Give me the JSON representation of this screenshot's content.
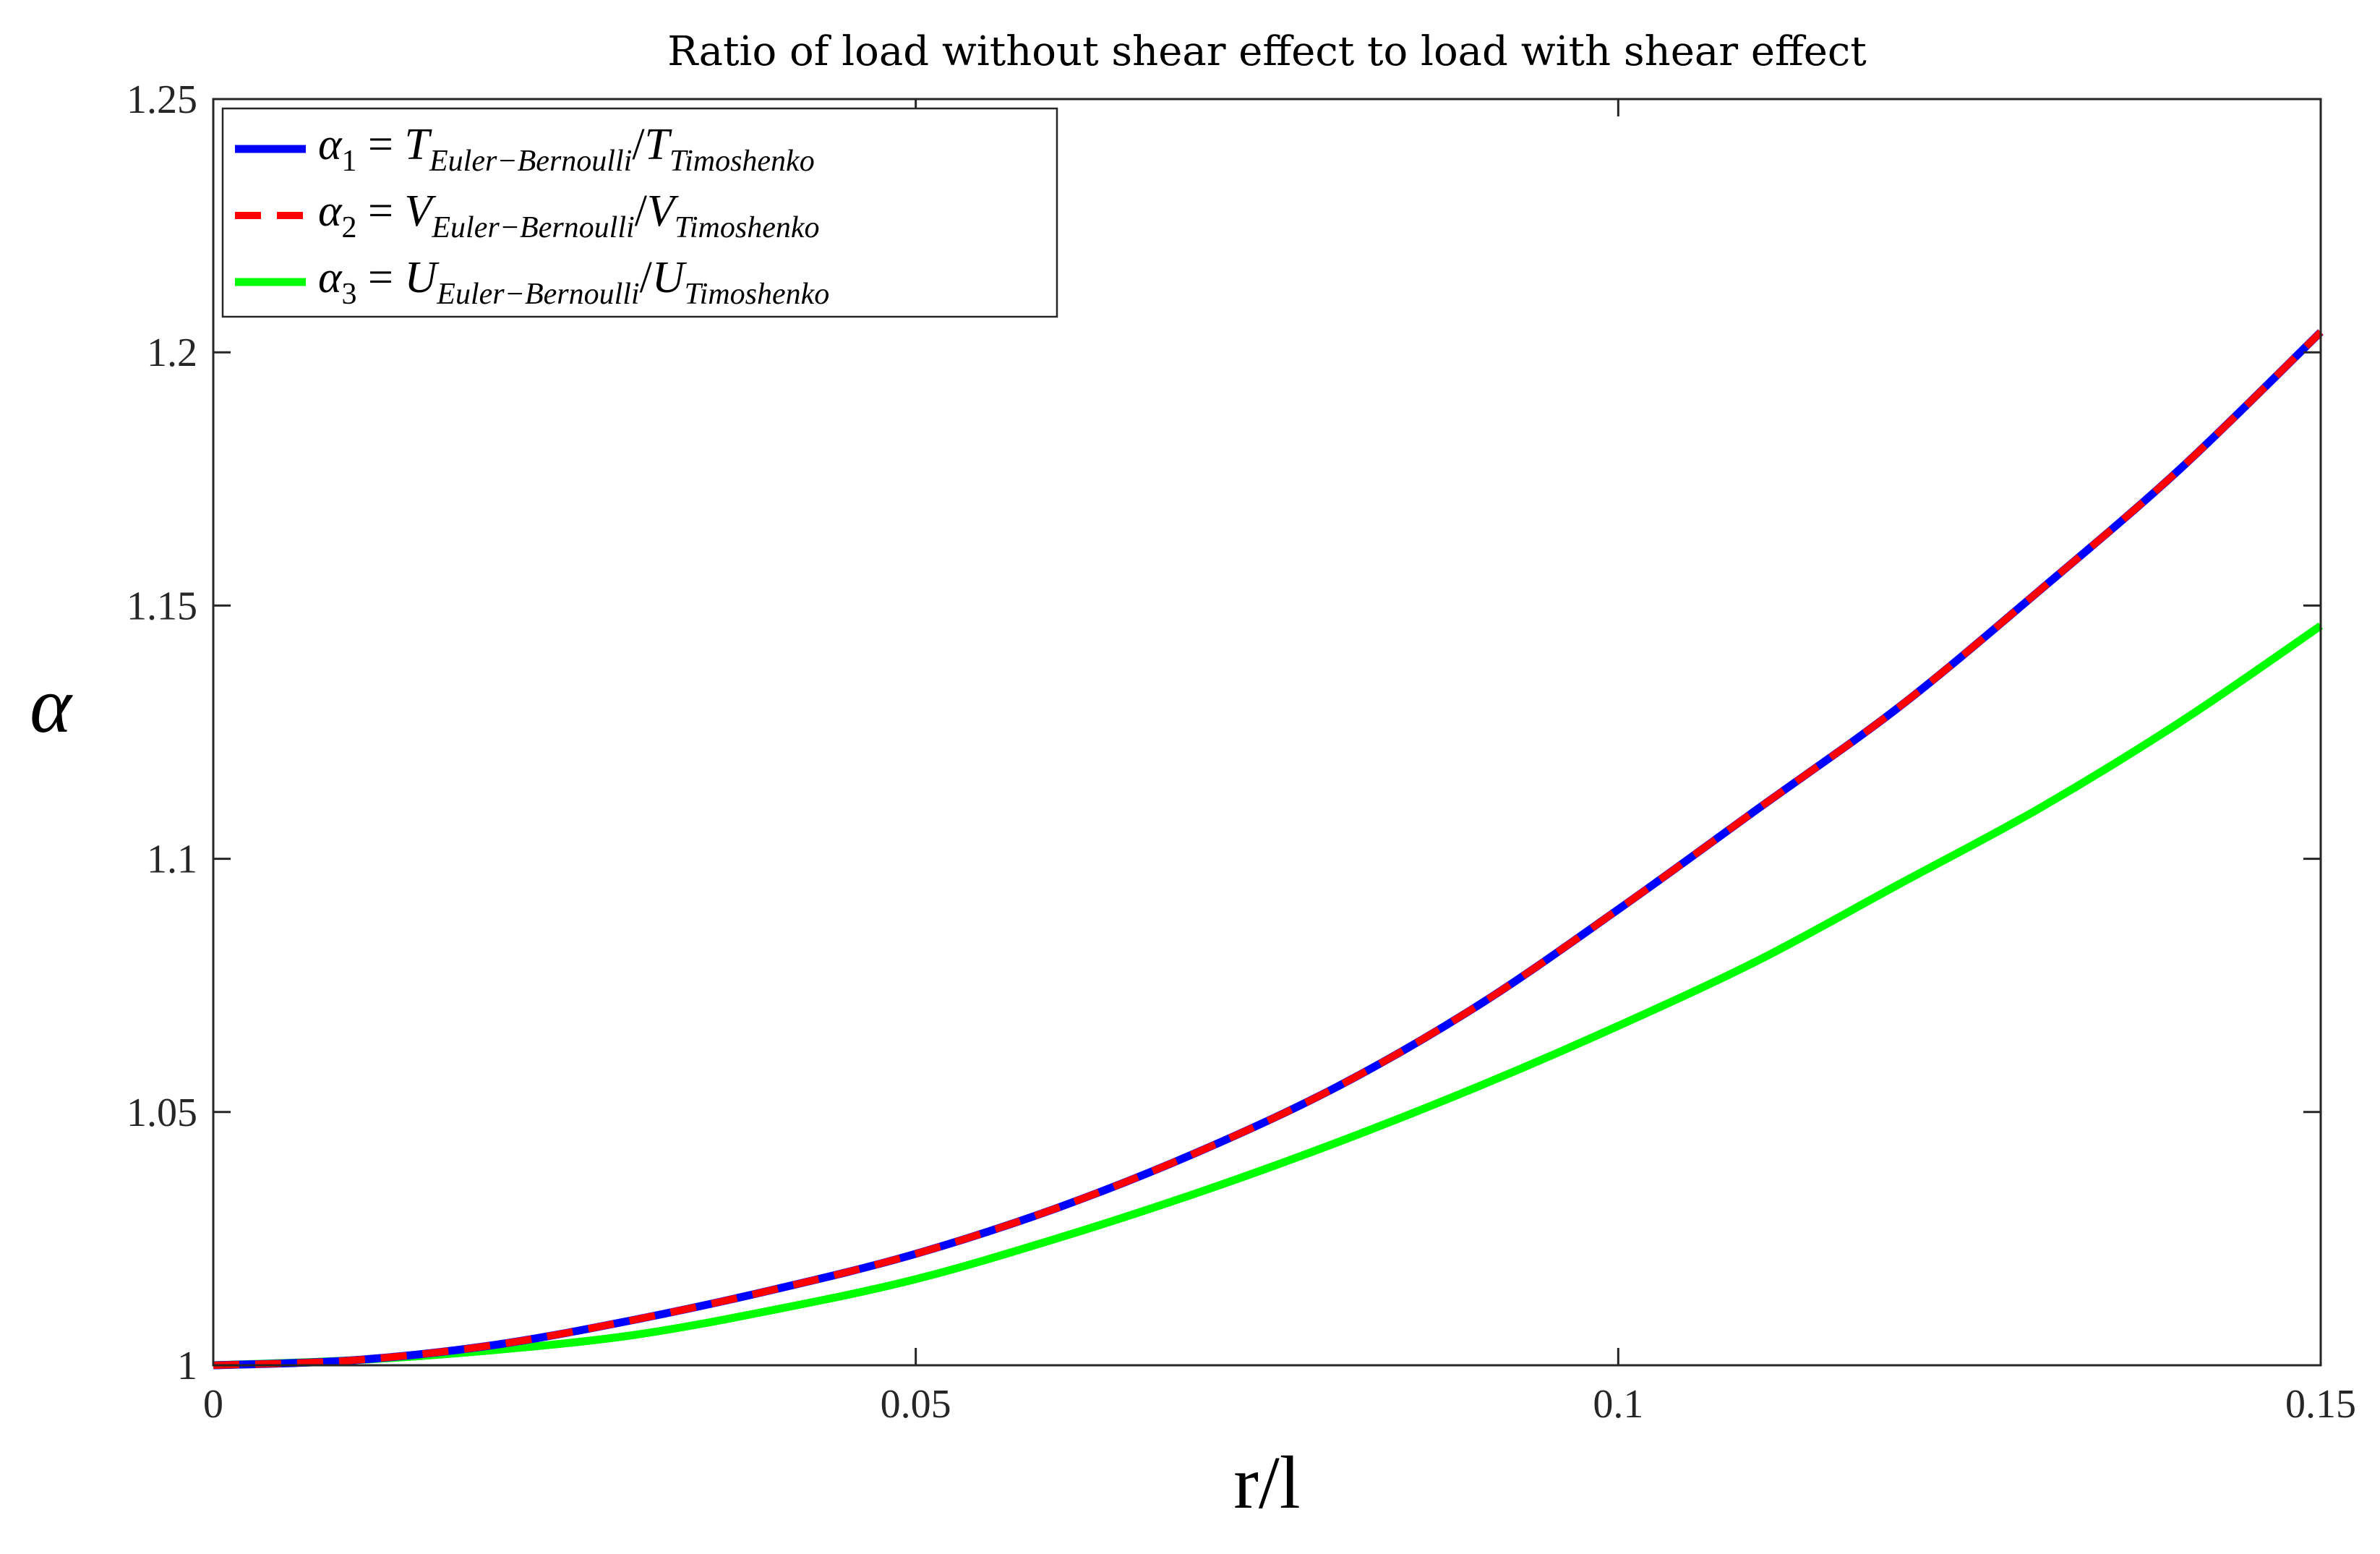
{
  "chart_data": {
    "type": "line",
    "title": "Ratio of load without shear effect to load with shear effect",
    "xlabel": "r/l",
    "ylabel": "α",
    "xlim": [
      0,
      0.15
    ],
    "ylim": [
      1,
      1.25
    ],
    "xticks": [
      0,
      0.05,
      0.1,
      0.15
    ],
    "xtick_labels": [
      "0",
      "0.05",
      "0.1",
      "0.15"
    ],
    "yticks": [
      1,
      1.05,
      1.1,
      1.15,
      1.2,
      1.25
    ],
    "ytick_labels": [
      "1",
      "1.05",
      "1.1",
      "1.15",
      "1.2",
      "1.25"
    ],
    "grid": false,
    "legend_position": "top-left",
    "series": [
      {
        "name": "α1 = T_Euler−Bernoulli / T_Timoshenko",
        "legend": {
          "sym": "α",
          "idx": "1",
          "letter": "T",
          "sub_num": "Euler−Bernoulli",
          "sub_den": "Timoshenko"
        },
        "color": "#0000ff",
        "style": "solid",
        "x": [
          0,
          0.01,
          0.02,
          0.03,
          0.04,
          0.05,
          0.06,
          0.07,
          0.08,
          0.09,
          0.1,
          0.11,
          0.12,
          0.13,
          0.14,
          0.15
        ],
        "y": [
          1.0,
          1.001,
          1.004,
          1.009,
          1.015,
          1.022,
          1.031,
          1.042,
          1.055,
          1.071,
          1.09,
          1.11,
          1.13,
          1.153,
          1.177,
          1.204
        ]
      },
      {
        "name": "α2 = V_Euler−Bernoulli / V_Timoshenko",
        "legend": {
          "sym": "α",
          "idx": "2",
          "letter": "V",
          "sub_num": "Euler−Bernoulli",
          "sub_den": "Timoshenko"
        },
        "color": "#ff0000",
        "style": "dashed",
        "x": [
          0,
          0.01,
          0.02,
          0.03,
          0.04,
          0.05,
          0.06,
          0.07,
          0.08,
          0.09,
          0.1,
          0.11,
          0.12,
          0.13,
          0.14,
          0.15
        ],
        "y": [
          1.0,
          1.001,
          1.004,
          1.009,
          1.015,
          1.022,
          1.031,
          1.042,
          1.055,
          1.071,
          1.09,
          1.11,
          1.13,
          1.153,
          1.177,
          1.204
        ]
      },
      {
        "name": "α3 = U_Euler−Bernoulli / U_Timoshenko",
        "legend": {
          "sym": "α",
          "idx": "3",
          "letter": "U",
          "sub_num": "Euler−Bernoulli",
          "sub_den": "Timoshenko"
        },
        "color": "#00ff00",
        "style": "solid",
        "x": [
          0,
          0.01,
          0.02,
          0.03,
          0.04,
          0.05,
          0.06,
          0.07,
          0.08,
          0.09,
          0.1,
          0.11,
          0.12,
          0.13,
          0.14,
          0.15
        ],
        "y": [
          1.0,
          1.001,
          1.003,
          1.006,
          1.011,
          1.017,
          1.025,
          1.034,
          1.044,
          1.055,
          1.067,
          1.08,
          1.095,
          1.11,
          1.127,
          1.146
        ]
      }
    ]
  }
}
